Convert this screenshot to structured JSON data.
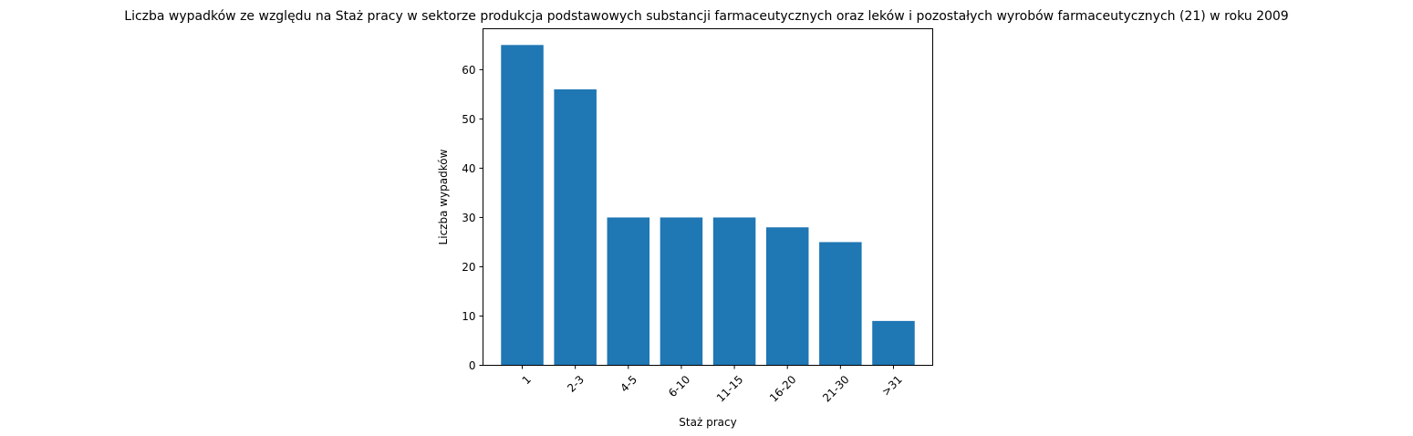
{
  "chart_data": {
    "type": "bar",
    "title": "Liczba wypadków ze względu na Staż pracy w sektorze produkcja podstawowych substancji farmaceutycznych oraz leków i pozostałych wyrobów farmaceutycznych (21)  w roku 2009",
    "xlabel": "Staż pracy",
    "ylabel": "Liczba wypadków",
    "categories": [
      "1",
      "2-3",
      "4-5",
      "6-10",
      "11-15",
      "16-20",
      "21-30",
      ">31"
    ],
    "values": [
      65,
      56,
      30,
      30,
      30,
      28,
      25,
      9
    ],
    "ylim": [
      0,
      68.3
    ],
    "yticks": [
      0,
      10,
      20,
      30,
      40,
      50,
      60
    ],
    "bar_color": "#1f77b4",
    "grid": false,
    "x_tick_rotation": 45
  }
}
